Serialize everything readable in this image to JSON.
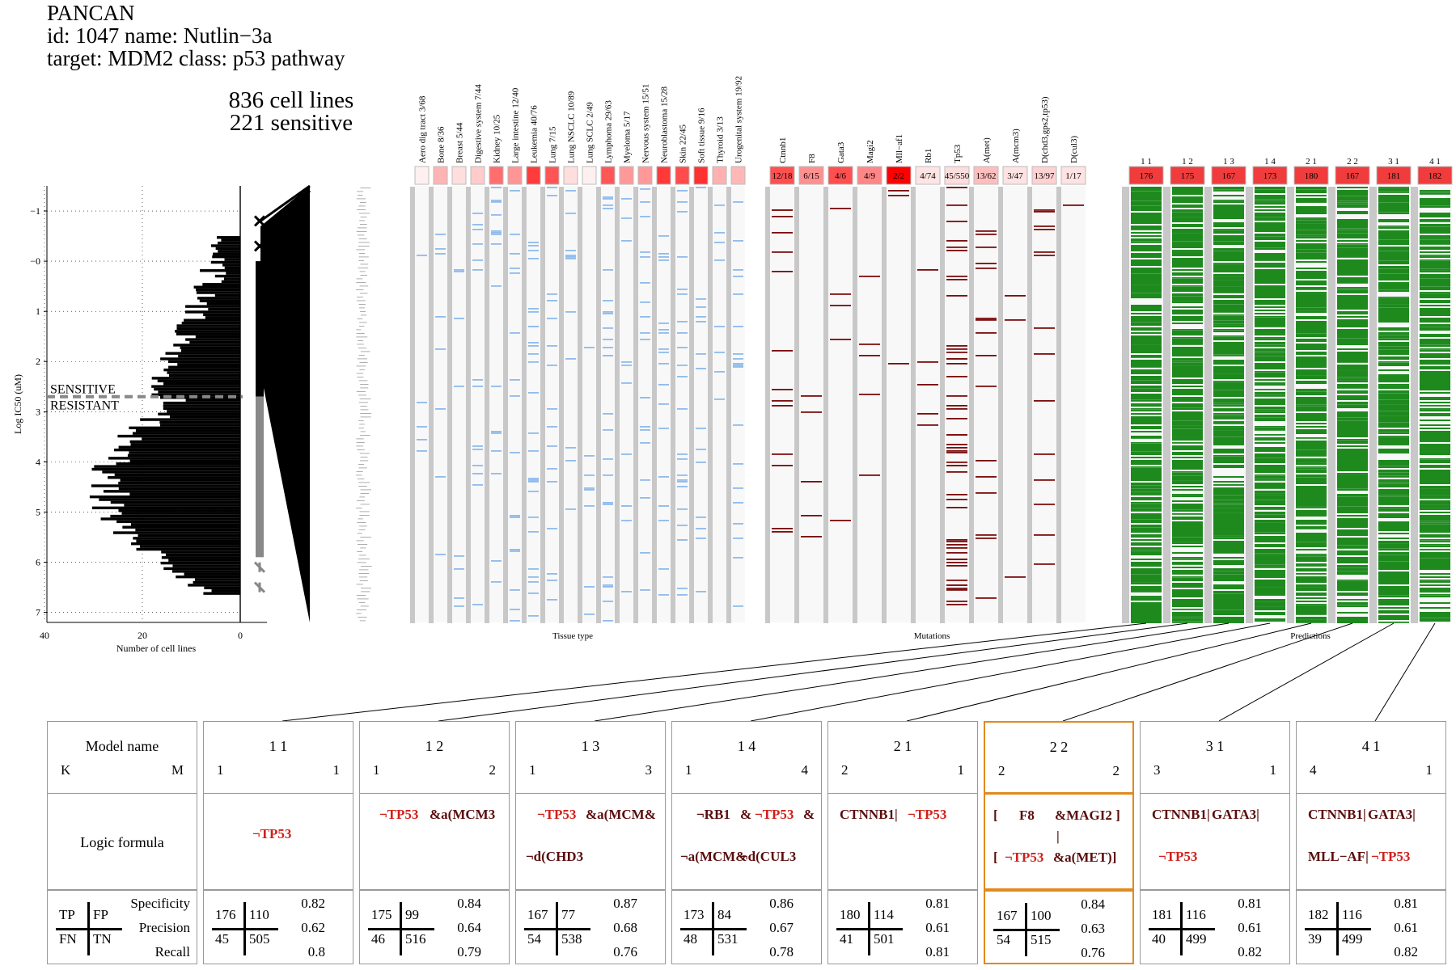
{
  "header": {
    "line1": "PANCAN",
    "line2": "id: 1047 name: Nutlin−3a",
    "line3": "target: MDM2 class: p53 pathway",
    "cells": "836 cell lines",
    "sensitive": "221 sensitive"
  },
  "chart_data": {
    "type": "heatmap",
    "histogram": {
      "ylabel": "Log IC50 (uM)",
      "xlabel": "Number of cell lines",
      "x_ticks": [
        "40",
        "20",
        "0"
      ],
      "y_ticks": [
        "−1",
        "−0",
        "1",
        "2",
        "3",
        "4",
        "5",
        "6",
        "7"
      ],
      "ylim": [
        -1.5,
        7.2
      ],
      "xlim": [
        0,
        40
      ],
      "threshold": 2.7,
      "threshold_labels": [
        "SENSITIVE",
        "RESISTANT"
      ]
    },
    "tissue": {
      "xlabel": "Tissue type",
      "columns": [
        {
          "label": "Aero dig tract 3/68",
          "frac": 0.04
        },
        {
          "label": "Bone 8/36",
          "frac": 0.22
        },
        {
          "label": "Breast 5/44",
          "frac": 0.11
        },
        {
          "label": "Digestive system 7/44",
          "frac": 0.16
        },
        {
          "label": "Kidney 10/25",
          "frac": 0.4
        },
        {
          "label": "Large intestine 12/40",
          "frac": 0.3
        },
        {
          "label": "Leukemia 40/76",
          "frac": 0.53
        },
        {
          "label": "Lung 7/15",
          "frac": 0.47
        },
        {
          "label": "Lung NSCLC 10/89",
          "frac": 0.11
        },
        {
          "label": "Lung SCLC 2/49",
          "frac": 0.04
        },
        {
          "label": "Lymphoma 29/63",
          "frac": 0.46
        },
        {
          "label": "Myeloma 5/17",
          "frac": 0.29
        },
        {
          "label": "Nervous system 15/51",
          "frac": 0.29
        },
        {
          "label": "Neuroblastoma 15/28",
          "frac": 0.54
        },
        {
          "label": "Skin 22/45",
          "frac": 0.49
        },
        {
          "label": "Soft tissue 9/16",
          "frac": 0.56
        },
        {
          "label": "Thyroid 3/13",
          "frac": 0.23
        },
        {
          "label": "Urogenital system 19/92",
          "frac": 0.21
        }
      ]
    },
    "mutations": {
      "xlabel": "Mutations",
      "columns": [
        {
          "label": "Ctnnb1",
          "count": "12/18",
          "frac": 0.67
        },
        {
          "label": "F8",
          "count": "6/15",
          "frac": 0.4
        },
        {
          "label": "Gata3",
          "count": "4/6",
          "frac": 0.67
        },
        {
          "label": "Magi2",
          "count": "4/9",
          "frac": 0.44
        },
        {
          "label": "Mll−af1",
          "count": "2/2",
          "frac": 1
        },
        {
          "label": "Rb1",
          "count": "4/74",
          "frac": 0.05
        },
        {
          "label": "Tp53",
          "count": "45/550",
          "frac": 0.08
        },
        {
          "label": "A(met)",
          "count": "13/62",
          "frac": 0.21
        },
        {
          "label": "A(mcm3)",
          "count": "3/47",
          "frac": 0.06
        },
        {
          "label": "D(chd3,gps2,tp53)",
          "count": "13/97",
          "frac": 0.13
        },
        {
          "label": "D(cul3)",
          "count": "1/17",
          "frac": 0.06
        }
      ]
    },
    "predictions": {
      "xlabel": "Predictions",
      "columns": [
        {
          "label": "1 1",
          "count": "176"
        },
        {
          "label": "1 2",
          "count": "175"
        },
        {
          "label": "1 3",
          "count": "167"
        },
        {
          "label": "1 4",
          "count": "173"
        },
        {
          "label": "2 1",
          "count": "180"
        },
        {
          "label": "2 2",
          "count": "167"
        },
        {
          "label": "3 1",
          "count": "181"
        },
        {
          "label": "4 1",
          "count": "182"
        }
      ]
    }
  },
  "legend": {
    "model_name": "Model name",
    "k": "K",
    "m": "M",
    "logic_formula": "Logic formula",
    "tp": "TP",
    "fp": "FP",
    "fn": "FN",
    "tn": "TN",
    "specificity": "Specificity",
    "precision": "Precision",
    "recall": "Recall"
  },
  "models": [
    {
      "name": "1 1",
      "k": "1",
      "m": "1",
      "tp": "176",
      "fp": "110",
      "fn": "45",
      "tn": "505",
      "spec": "0.82",
      "prec": "0.62",
      "rec": "0.8",
      "formula": [
        {
          "t": "¬TP53",
          "neg": true,
          "x": 60,
          "y": 40
        }
      ]
    },
    {
      "name": "1 2",
      "k": "1",
      "m": "2",
      "tp": "175",
      "fp": "99",
      "fn": "46",
      "tn": "516",
      "spec": "0.84",
      "prec": "0.64",
      "rec": "0.79",
      "formula": [
        {
          "t": "¬TP53",
          "neg": true,
          "x": 24,
          "y": 16
        },
        {
          "t": "&a(MCM3",
          "neg": false,
          "x": 86,
          "y": 16
        }
      ]
    },
    {
      "name": "1 3",
      "k": "1",
      "m": "3",
      "tp": "167",
      "fp": "77",
      "fn": "54",
      "tn": "538",
      "spec": "0.87",
      "prec": "0.68",
      "rec": "0.76",
      "formula": [
        {
          "t": "¬TP53",
          "neg": true,
          "x": 26,
          "y": 16
        },
        {
          "t": "&a(MCM&",
          "neg": false,
          "x": 86,
          "y": 16
        },
        {
          "t": "¬d(CHD3",
          "neg": false,
          "x": 12,
          "y": 68
        }
      ]
    },
    {
      "name": "1 4",
      "k": "1",
      "m": "4",
      "tp": "173",
      "fp": "84",
      "fn": "48",
      "tn": "531",
      "spec": "0.86",
      "prec": "0.67",
      "rec": "0.78",
      "formula": [
        {
          "t": "¬RB1",
          "neg": false,
          "x": 30,
          "y": 16
        },
        {
          "t": "&",
          "neg": false,
          "x": 84,
          "y": 16
        },
        {
          "t": "¬TP53",
          "neg": true,
          "x": 102,
          "y": 16
        },
        {
          "t": "&",
          "neg": false,
          "x": 162,
          "y": 16
        },
        {
          "t": "¬a(MCM&",
          "neg": false,
          "x": 10,
          "y": 68
        },
        {
          "t": "¬d(CUL3",
          "neg": false,
          "x": 84,
          "y": 68
        }
      ]
    },
    {
      "name": "2 1",
      "k": "2",
      "m": "1",
      "tp": "180",
      "fp": "114",
      "fn": "41",
      "tn": "501",
      "spec": "0.81",
      "prec": "0.61",
      "rec": "0.81",
      "formula": [
        {
          "t": "CTNNB1|",
          "neg": false,
          "x": 14,
          "y": 16
        },
        {
          "t": "¬TP53",
          "neg": true,
          "x": 98,
          "y": 16
        }
      ]
    },
    {
      "name": "2 2",
      "k": "2",
      "m": "2",
      "tp": "167",
      "fp": "100",
      "fn": "54",
      "tn": "515",
      "spec": "0.84",
      "prec": "0.63",
      "rec": "0.76",
      "formula": [
        {
          "t": "[",
          "neg": false,
          "x": 10,
          "y": 16
        },
        {
          "t": "F8",
          "neg": false,
          "x": 42,
          "y": 16
        },
        {
          "t": "&MAGI2 ]",
          "neg": false,
          "x": 86,
          "y": 16
        },
        {
          "t": "|",
          "neg": false,
          "x": 88,
          "y": 42
        },
        {
          "t": "[",
          "neg": false,
          "x": 10,
          "y": 68
        },
        {
          "t": "¬TP53",
          "neg": true,
          "x": 24,
          "y": 68
        },
        {
          "t": "&a(MET)]",
          "neg": false,
          "x": 84,
          "y": 68
        }
      ]
    },
    {
      "name": "3 1",
      "k": "3",
      "m": "1",
      "tp": "181",
      "fp": "116",
      "fn": "40",
      "tn": "499",
      "spec": "0.81",
      "prec": "0.61",
      "rec": "0.82",
      "formula": [
        {
          "t": "CTNNB1|",
          "neg": false,
          "x": 14,
          "y": 16
        },
        {
          "t": "GATA3|",
          "neg": false,
          "x": 88,
          "y": 16
        },
        {
          "t": "¬TP53",
          "neg": true,
          "x": 22,
          "y": 68
        }
      ]
    },
    {
      "name": "4 1",
      "k": "4",
      "m": "1",
      "tp": "182",
      "fp": "116",
      "fn": "39",
      "tn": "499",
      "spec": "0.81",
      "prec": "0.61",
      "rec": "0.82",
      "formula": [
        {
          "t": "CTNNB1|",
          "neg": false,
          "x": 14,
          "y": 16
        },
        {
          "t": "GATA3|",
          "neg": false,
          "x": 88,
          "y": 16
        },
        {
          "t": "MLL−AF|",
          "neg": false,
          "x": 14,
          "y": 68
        },
        {
          "t": "¬TP53",
          "neg": true,
          "x": 92,
          "y": 68
        }
      ]
    }
  ],
  "selected_model": 5
}
